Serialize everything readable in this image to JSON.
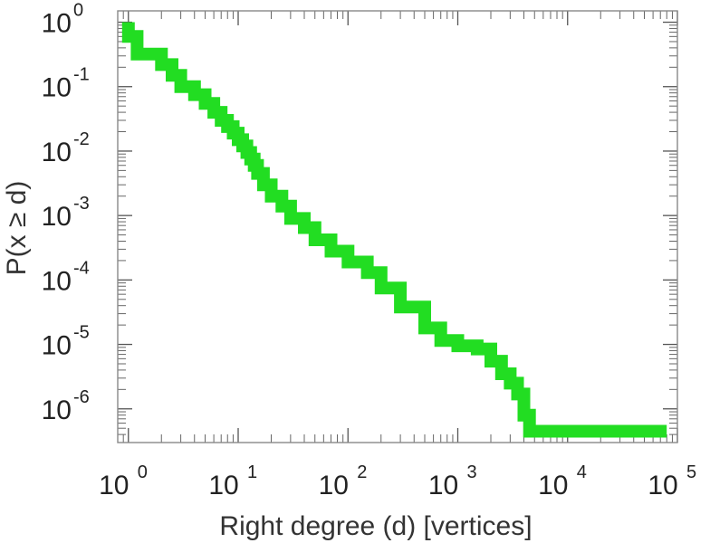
{
  "chart_data": {
    "type": "line",
    "subtype": "step",
    "title": "",
    "xlabel": "Right degree (d) [vertices]",
    "ylabel": "P(x ≥ d)",
    "x_scale": "log",
    "y_scale": "log",
    "xlim": [
      0.8,
      100000
    ],
    "ylim": [
      3e-07,
      1.5
    ],
    "grid": false,
    "legend": "none",
    "x_ticks": [
      {
        "value": 1,
        "base": "10",
        "exp": "0"
      },
      {
        "value": 10,
        "base": "10",
        "exp": "1"
      },
      {
        "value": 100,
        "base": "10",
        "exp": "2"
      },
      {
        "value": 1000,
        "base": "10",
        "exp": "3"
      },
      {
        "value": 10000,
        "base": "10",
        "exp": "4"
      },
      {
        "value": 100000,
        "base": "10",
        "exp": "5"
      }
    ],
    "y_ticks": [
      {
        "value": 1,
        "base": "10",
        "exp": "0"
      },
      {
        "value": 0.1,
        "base": "10",
        "exp": "-1"
      },
      {
        "value": 0.01,
        "base": "10",
        "exp": "-2"
      },
      {
        "value": 0.001,
        "base": "10",
        "exp": "-3"
      },
      {
        "value": 0.0001,
        "base": "10",
        "exp": "-4"
      },
      {
        "value": 1e-05,
        "base": "10",
        "exp": "-5"
      },
      {
        "value": 1e-06,
        "base": "10",
        "exp": "-6"
      }
    ],
    "series": [
      {
        "color": "#22dd22",
        "x": [
          1,
          1.2,
          2,
          2.5,
          3,
          4,
          5,
          6,
          7,
          8,
          9,
          10,
          11,
          12,
          13,
          14,
          15,
          17,
          20,
          25,
          30,
          40,
          50,
          70,
          100,
          150,
          200,
          300,
          500,
          700,
          1000,
          1500,
          2000,
          2500,
          3000,
          3500,
          4000,
          4500,
          12000,
          80000
        ],
        "y": [
          1,
          0.6,
          0.32,
          0.22,
          0.15,
          0.1,
          0.075,
          0.055,
          0.04,
          0.03,
          0.024,
          0.019,
          0.015,
          0.012,
          0.0095,
          0.0075,
          0.006,
          0.0045,
          0.003,
          0.002,
          0.0014,
          0.0009,
          0.00065,
          0.00042,
          0.00028,
          0.00019,
          0.00013,
          7.5e-05,
          3.8e-05,
          1.8e-05,
          1.15e-05,
          9.5e-06,
          8.5e-06,
          5.5e-06,
          3.5e-06,
          2.5e-06,
          1.7e-06,
          8e-07,
          4.5e-07,
          4.5e-07
        ]
      }
    ]
  }
}
